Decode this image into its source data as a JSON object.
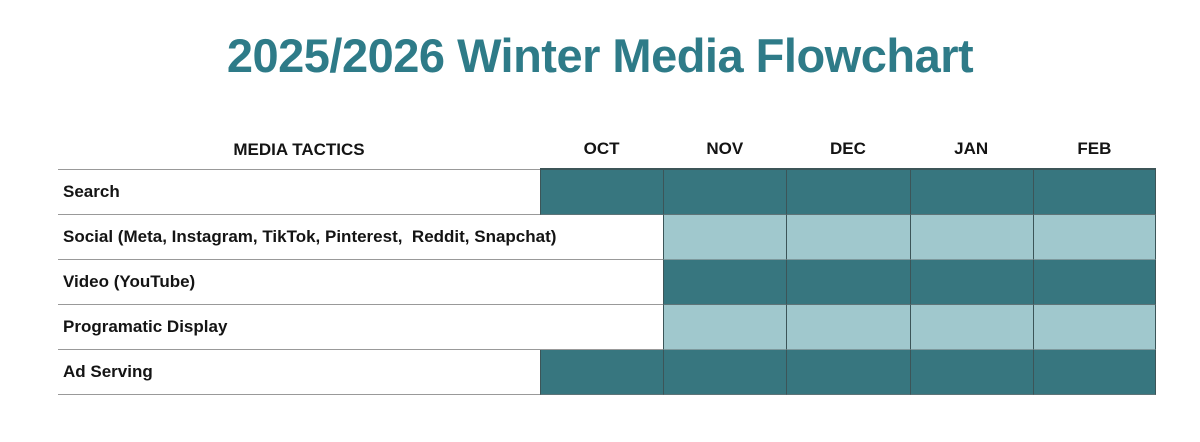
{
  "title": "2025/2026 Winter Media Flowchart",
  "colors": {
    "title": "#2E7B88",
    "dark_cell": "#37767F",
    "light_cell": "#A0C8CD",
    "grid_line": "#999999",
    "cell_border": "#3C5558",
    "label_text": "#141414"
  },
  "chart_data": {
    "type": "gantt",
    "title": "2025/2026 Winter Media Flowchart",
    "row_header": "MEDIA TACTICS",
    "columns": [
      "OCT",
      "NOV",
      "DEC",
      "JAN",
      "FEB"
    ],
    "rows": [
      {
        "label": "Search",
        "shade": "dark",
        "fills": [
          1,
          1,
          1,
          1,
          1
        ],
        "active_months": [
          "OCT",
          "NOV",
          "DEC",
          "JAN",
          "FEB"
        ]
      },
      {
        "label": "Social (Meta, Instagram, TikTok, Pinterest,  Reddit, Snapchat)",
        "shade": "light",
        "fills": [
          0,
          1,
          1,
          1,
          1
        ],
        "active_months": [
          "NOV",
          "DEC",
          "JAN",
          "FEB"
        ]
      },
      {
        "label": "Video (YouTube)",
        "shade": "dark",
        "fills": [
          0,
          1,
          1,
          1,
          1
        ],
        "active_months": [
          "NOV",
          "DEC",
          "JAN",
          "FEB"
        ]
      },
      {
        "label": "Programatic Display",
        "shade": "light",
        "fills": [
          0,
          1,
          1,
          1,
          1
        ],
        "active_months": [
          "NOV",
          "DEC",
          "JAN",
          "FEB"
        ]
      },
      {
        "label": "Ad Serving",
        "shade": "dark",
        "fills": [
          1,
          1,
          1,
          1,
          1
        ],
        "active_months": [
          "OCT",
          "NOV",
          "DEC",
          "JAN",
          "FEB"
        ]
      }
    ],
    "legend_dark_meaning": "dark teal filled month",
    "legend_light_meaning": "light teal filled month"
  }
}
